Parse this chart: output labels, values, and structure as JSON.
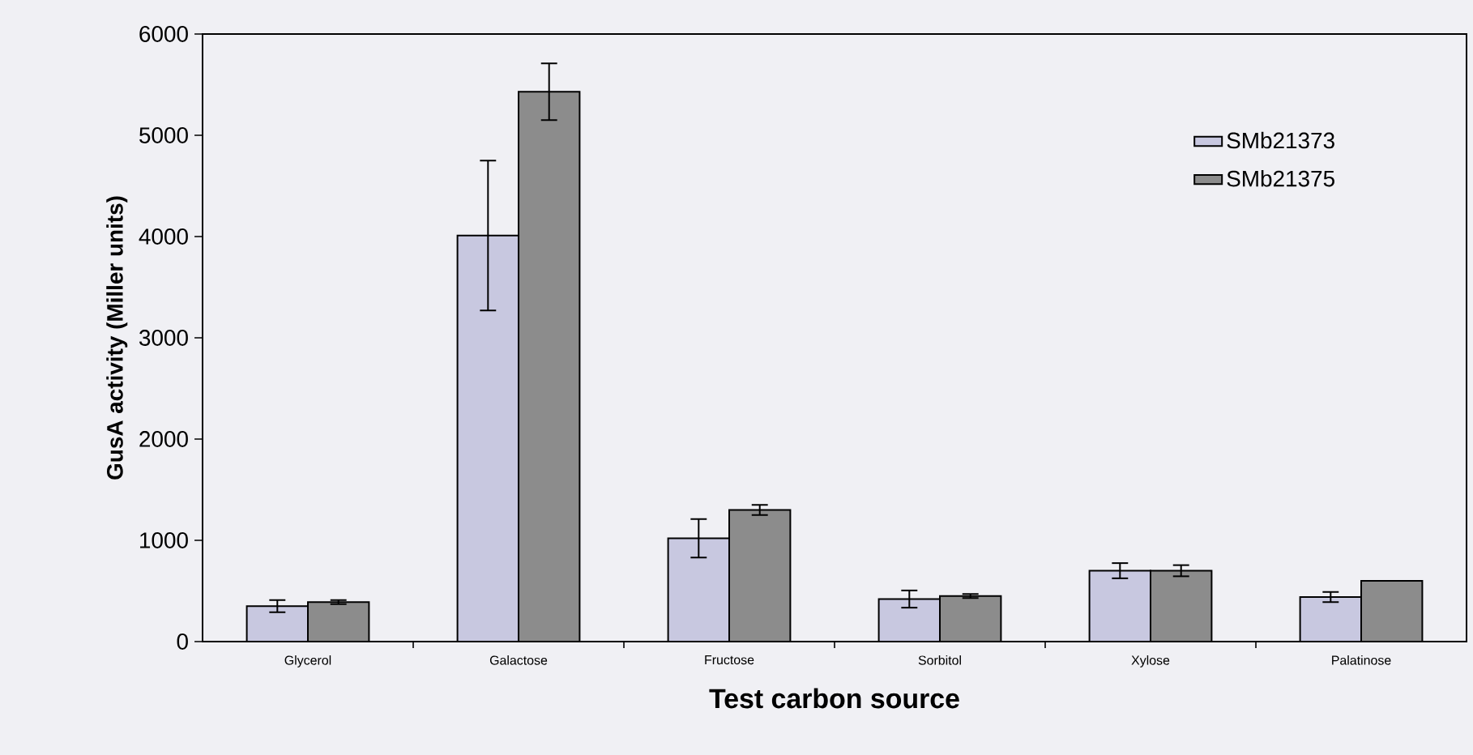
{
  "chart_data": {
    "type": "bar",
    "xlabel": "Test carbon source",
    "ylabel": "GusA activity (Miller units)",
    "categories": [
      "Glycerol",
      "Galactose",
      "Fructose",
      "Sorbitol",
      "Xylose",
      "Palatinose"
    ],
    "series": [
      {
        "name": "SMb21373",
        "color": "#c8c8e0",
        "values": [
          350,
          4010,
          1020,
          420,
          700,
          440
        ],
        "errors": [
          60,
          740,
          190,
          85,
          75,
          50
        ]
      },
      {
        "name": "SMb21375",
        "color": "#8c8c8c",
        "values": [
          390,
          5430,
          1300,
          450,
          700,
          600
        ],
        "errors": [
          20,
          280,
          50,
          20,
          55,
          null
        ]
      }
    ],
    "ylim": [
      0,
      6000
    ],
    "yticks": [
      0,
      1000,
      2000,
      3000,
      4000,
      5000,
      6000
    ],
    "grid": false,
    "legend": "top right"
  }
}
